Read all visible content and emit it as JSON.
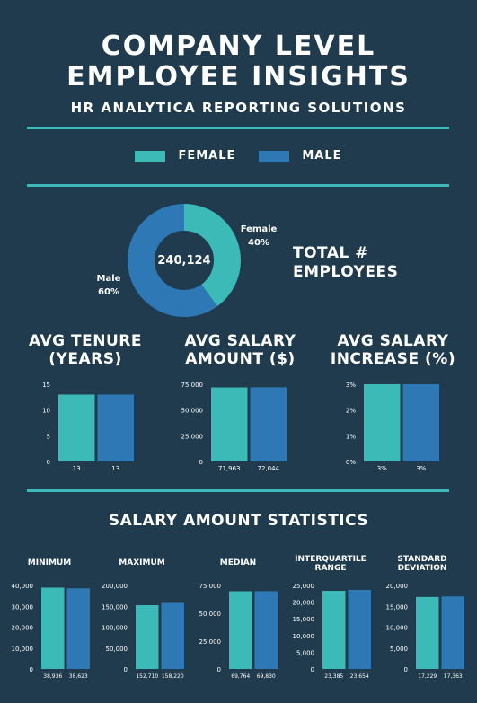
{
  "header": {
    "title_line1": "COMPANY LEVEL",
    "title_line2": "EMPLOYEE INSIGHTS",
    "subtitle": "HR ANALYTICA REPORTING SOLUTIONS"
  },
  "legend": {
    "female_label": "FEMALE",
    "male_label": "MALE"
  },
  "colors": {
    "background": "#1f3b4d",
    "female": "#3bbab8",
    "male": "#2e79b5",
    "rule": "#3bbab8"
  },
  "donut": {
    "center_label": "240,124",
    "side_label_line1": "TOTAL #",
    "side_label_line2": "EMPLOYEES",
    "female_label": "Female",
    "female_pct": "40%",
    "male_label": "Male",
    "male_pct": "60%"
  },
  "sections": {
    "stats_title": "SALARY AMOUNT STATISTICS"
  },
  "chart_data": [
    {
      "id": "gender-split",
      "type": "pie",
      "labels": [
        "Female",
        "Male"
      ],
      "values": [
        40,
        60
      ],
      "total": "240,124"
    },
    {
      "id": "avg-tenure",
      "type": "bar",
      "title": "AVG TENURE (YEARS)",
      "title_lines": [
        "AVG TENURE",
        "(YEARS)"
      ],
      "categories": [
        "Female",
        "Male"
      ],
      "values": [
        13,
        13
      ],
      "value_labels": [
        "13",
        "13"
      ],
      "ylim": [
        0,
        15
      ],
      "yticks": [
        0,
        5,
        10,
        15
      ],
      "ytick_labels": [
        "0",
        "5",
        "10",
        "15"
      ]
    },
    {
      "id": "avg-salary",
      "type": "bar",
      "title": "AVG SALARY AMOUNT ($)",
      "title_lines": [
        "AVG SALARY",
        "AMOUNT ($)"
      ],
      "categories": [
        "Female",
        "Male"
      ],
      "values": [
        71963,
        72044
      ],
      "value_labels": [
        "71,963",
        "72,044"
      ],
      "ylim": [
        0,
        75000
      ],
      "yticks": [
        0,
        25000,
        50000,
        75000
      ],
      "ytick_labels": [
        "0",
        "25,000",
        "50,000",
        "75,000"
      ]
    },
    {
      "id": "avg-increase",
      "type": "bar",
      "title": "AVG SALARY INCREASE (%)",
      "title_lines": [
        "AVG SALARY",
        "INCREASE (%)"
      ],
      "categories": [
        "Female",
        "Male"
      ],
      "values": [
        3,
        3
      ],
      "value_labels": [
        "3%",
        "3%"
      ],
      "ylim": [
        0,
        3
      ],
      "yticks": [
        0,
        1,
        2,
        3
      ],
      "ytick_labels": [
        "0%",
        "1%",
        "2%",
        "3%"
      ]
    },
    {
      "id": "stat-minimum",
      "type": "bar",
      "title": "MINIMUM",
      "title_lines": [
        "MINIMUM"
      ],
      "categories": [
        "Female",
        "Male"
      ],
      "values": [
        38936,
        38623
      ],
      "value_labels": [
        "38,936",
        "38,623"
      ],
      "ylim": [
        0,
        40000
      ],
      "yticks": [
        0,
        10000,
        20000,
        30000,
        40000
      ],
      "ytick_labels": [
        "0",
        "10,000",
        "20,000",
        "30,000",
        "40,000"
      ]
    },
    {
      "id": "stat-maximum",
      "type": "bar",
      "title": "MAXIMUM",
      "title_lines": [
        "MAXIMUM"
      ],
      "categories": [
        "Female",
        "Male"
      ],
      "values": [
        152710,
        158220
      ],
      "value_labels": [
        "152,710",
        "158,220"
      ],
      "ylim": [
        0,
        200000
      ],
      "yticks": [
        0,
        50000,
        100000,
        150000,
        200000
      ],
      "ytick_labels": [
        "0",
        "50,000",
        "100,000",
        "150,000",
        "200,000"
      ]
    },
    {
      "id": "stat-median",
      "type": "bar",
      "title": "MEDIAN",
      "title_lines": [
        "MEDIAN"
      ],
      "categories": [
        "Female",
        "Male"
      ],
      "values": [
        69764,
        69830
      ],
      "value_labels": [
        "69,764",
        "69,830"
      ],
      "ylim": [
        0,
        75000
      ],
      "yticks": [
        0,
        25000,
        50000,
        75000
      ],
      "ytick_labels": [
        "0",
        "25,000",
        "50,000",
        "75,000"
      ]
    },
    {
      "id": "stat-iqr",
      "type": "bar",
      "title": "INTERQUARTILE RANGE",
      "title_lines": [
        "INTERQUARTILE",
        "RANGE"
      ],
      "categories": [
        "Female",
        "Male"
      ],
      "values": [
        23385,
        23654
      ],
      "value_labels": [
        "23,385",
        "23,654"
      ],
      "ylim": [
        0,
        25000
      ],
      "yticks": [
        0,
        5000,
        10000,
        15000,
        20000,
        25000
      ],
      "ytick_labels": [
        "0",
        "5,000",
        "10,000",
        "15,000",
        "20,000",
        "25,000"
      ]
    },
    {
      "id": "stat-stddev",
      "type": "bar",
      "title": "STANDARD DEVIATION",
      "title_lines": [
        "STANDARD",
        "DEVIATION"
      ],
      "categories": [
        "Female",
        "Male"
      ],
      "values": [
        17229,
        17363
      ],
      "value_labels": [
        "17,229",
        "17,363"
      ],
      "ylim": [
        0,
        20000
      ],
      "yticks": [
        0,
        5000,
        10000,
        15000,
        20000
      ],
      "ytick_labels": [
        "0",
        "5,000",
        "10,000",
        "15,000",
        "20,000"
      ]
    }
  ]
}
